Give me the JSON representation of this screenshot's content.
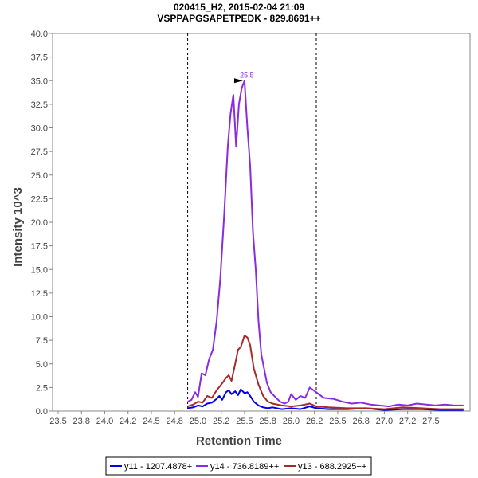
{
  "chart_data": {
    "type": "line",
    "title": "020415_H2, 2015-02-04 21:09",
    "subtitle": "VSPPAPGSAPETPEDK - 829.8691++",
    "xlabel": "Retention Time",
    "ylabel": "Intensity 10^3",
    "xlim": [
      23.44,
      27.92
    ],
    "ylim": [
      0,
      40
    ],
    "x_ticks": [
      23.5,
      23.75,
      24.0,
      24.25,
      24.5,
      24.75,
      25.0,
      25.25,
      25.5,
      25.75,
      26.0,
      26.25,
      26.5,
      26.75,
      27.0,
      27.25,
      27.5
    ],
    "x_tick_labels": [
      "23.5",
      "23.8",
      "24.0",
      "24.2",
      "24.5",
      "24.8",
      "25.0",
      "25.2",
      "25.5",
      "25.8",
      "26.0",
      "26.2",
      "26.5",
      "26.8",
      "27.0",
      "27.2",
      "27.5"
    ],
    "y_ticks": [
      0,
      2.5,
      5,
      7.5,
      10,
      12.5,
      15,
      17.5,
      20,
      22.5,
      25,
      27.5,
      30,
      32.5,
      35,
      37.5,
      40
    ],
    "y_tick_labels": [
      "0.0",
      "2.5",
      "5.0",
      "7.5",
      "10.0",
      "12.5",
      "15.0",
      "17.5",
      "20.0",
      "22.5",
      "25.0",
      "27.5",
      "30.0",
      "32.5",
      "35.0",
      "37.5",
      "40.0"
    ],
    "boundaries": [
      24.89,
      26.27
    ],
    "annotation": {
      "label": "25.5",
      "x": 25.5,
      "y": 35.0,
      "color": "#8a2be2"
    },
    "grid": false,
    "legend_position": "bottom",
    "series": [
      {
        "name": "y11 - 1207.4878+",
        "color": "#0000ee",
        "x": [
          24.89,
          24.95,
          25.0,
          25.05,
          25.1,
          25.15,
          25.2,
          25.23,
          25.26,
          25.3,
          25.33,
          25.36,
          25.4,
          25.43,
          25.46,
          25.5,
          25.53,
          25.56,
          25.6,
          25.65,
          25.7,
          25.75,
          25.8,
          25.9,
          26.0,
          26.1,
          26.2,
          26.27,
          26.4,
          26.6,
          26.8,
          27.0,
          27.2,
          27.4,
          27.6,
          27.85
        ],
        "y": [
          0.3,
          0.4,
          0.6,
          0.5,
          0.8,
          0.9,
          1.3,
          1.6,
          1.2,
          2.0,
          2.2,
          1.8,
          2.1,
          1.7,
          2.3,
          1.9,
          2.0,
          1.6,
          1.0,
          0.6,
          0.4,
          0.3,
          0.4,
          0.2,
          0.3,
          0.2,
          0.5,
          0.3,
          0.2,
          0.2,
          0.3,
          0.1,
          0.2,
          0.2,
          0.1,
          0.1
        ]
      },
      {
        "name": "y14 - 736.8189++",
        "color": "#8a2be2",
        "x": [
          24.89,
          24.93,
          24.97,
          25.0,
          25.04,
          25.08,
          25.12,
          25.16,
          25.2,
          25.24,
          25.28,
          25.32,
          25.35,
          25.38,
          25.41,
          25.44,
          25.47,
          25.5,
          25.53,
          25.56,
          25.59,
          25.62,
          25.65,
          25.68,
          25.71,
          25.74,
          25.78,
          25.83,
          25.88,
          25.93,
          25.97,
          26.0,
          26.05,
          26.1,
          26.15,
          26.2,
          26.27,
          26.35,
          26.45,
          26.55,
          26.65,
          26.75,
          26.85,
          26.95,
          27.05,
          27.15,
          27.25,
          27.35,
          27.45,
          27.55,
          27.65,
          27.75,
          27.85
        ],
        "y": [
          1.0,
          1.2,
          2.0,
          1.5,
          4.0,
          3.8,
          5.5,
          6.5,
          9.5,
          14.0,
          20.5,
          28.0,
          31.5,
          33.5,
          28.0,
          32.5,
          34.2,
          35.0,
          30.0,
          26.0,
          19.0,
          15.0,
          9.5,
          6.0,
          4.5,
          3.0,
          2.0,
          1.5,
          1.0,
          0.8,
          1.0,
          1.8,
          1.2,
          1.6,
          1.4,
          2.5,
          2.0,
          1.4,
          1.3,
          1.0,
          0.8,
          0.9,
          0.7,
          0.6,
          0.5,
          0.7,
          0.6,
          0.8,
          0.7,
          0.6,
          0.7,
          0.6,
          0.6
        ]
      },
      {
        "name": "y13 - 688.2925++",
        "color": "#a52a2a",
        "x": [
          24.89,
          24.95,
          25.0,
          25.05,
          25.1,
          25.15,
          25.2,
          25.25,
          25.3,
          25.33,
          25.36,
          25.4,
          25.43,
          25.46,
          25.5,
          25.53,
          25.56,
          25.6,
          25.65,
          25.7,
          25.75,
          25.8,
          25.9,
          26.0,
          26.1,
          26.2,
          26.27,
          26.4,
          26.6,
          26.8,
          27.0,
          27.2,
          27.4,
          27.6,
          27.85
        ],
        "y": [
          0.5,
          0.7,
          1.0,
          0.9,
          1.6,
          1.4,
          2.2,
          2.8,
          3.5,
          3.8,
          3.2,
          5.0,
          6.5,
          6.8,
          8.0,
          7.8,
          7.0,
          4.5,
          2.8,
          1.6,
          1.0,
          0.8,
          0.6,
          0.5,
          0.6,
          0.8,
          0.5,
          0.4,
          0.3,
          0.3,
          0.2,
          0.4,
          0.3,
          0.2,
          0.2
        ]
      }
    ]
  }
}
